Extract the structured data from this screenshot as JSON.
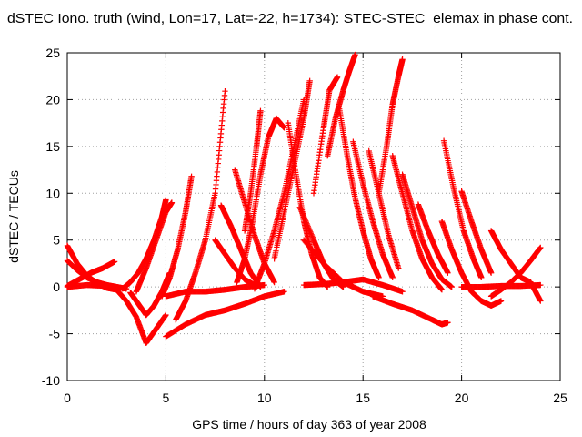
{
  "chart_data": {
    "type": "scatter",
    "title": "dSTEC Iono. truth (wind, Lon=17, Lat=-22, h=1734): STEC-STEC_elemax in phase cont.",
    "xlabel": "GPS time / hours of day 363 of year 2008",
    "ylabel": "dSTEC  / TECUs",
    "xlim": [
      0,
      25
    ],
    "ylim": [
      -10,
      25
    ],
    "x_ticks": [
      "0",
      "5",
      "10",
      "15",
      "20",
      "25"
    ],
    "y_ticks": [
      "-10",
      "-5",
      "0",
      "5",
      "10",
      "15",
      "20",
      "25"
    ],
    "grid": true,
    "marker": "+",
    "color": "#ff0000",
    "series": [
      {
        "x": [
          0.0,
          0.5,
          1.0,
          1.5,
          2.0,
          2.5
        ],
        "y": [
          4.4,
          2.5,
          1.2,
          0.4,
          -0.1,
          -0.3
        ]
      },
      {
        "x": [
          0.0,
          0.5,
          1.0,
          1.5,
          2.0,
          2.5,
          3.0
        ],
        "y": [
          2.8,
          1.8,
          1.0,
          0.5,
          0.2,
          0.0,
          -0.2
        ]
      },
      {
        "x": [
          0.0,
          1.0,
          2.0,
          2.5,
          3.0,
          3.5,
          4.0,
          4.5,
          5.0
        ],
        "y": [
          0.0,
          0.2,
          0.1,
          -0.3,
          -1.5,
          -3.2,
          -6.0,
          -4.5,
          -3.0
        ]
      },
      {
        "x": [
          0.0,
          0.6,
          1.2,
          1.8,
          2.4
        ],
        "y": [
          0.1,
          0.8,
          1.5,
          2.0,
          2.7
        ]
      },
      {
        "x": [
          2.8,
          3.2,
          3.6,
          4.0,
          4.4,
          4.8,
          5.0
        ],
        "y": [
          -0.2,
          0.5,
          1.5,
          3.0,
          5.0,
          7.5,
          9.3
        ]
      },
      {
        "x": [
          3.2,
          3.6,
          4.0,
          4.4,
          4.8,
          5.2
        ],
        "y": [
          -0.6,
          -1.8,
          -3.0,
          -2.0,
          -0.5,
          1.5
        ]
      },
      {
        "x": [
          3.5,
          4.0,
          4.5,
          5.0,
          5.3
        ],
        "y": [
          -0.5,
          2.0,
          5.0,
          8.0,
          9.0
        ]
      },
      {
        "x": [
          4.8,
          5.2,
          5.6,
          6.0,
          6.3
        ],
        "y": [
          -1.0,
          1.0,
          4.0,
          8.0,
          11.8
        ]
      },
      {
        "x": [
          5.0,
          6.0,
          7.0,
          8.0,
          9.0,
          10.0,
          11.0
        ],
        "y": [
          -5.3,
          -4.0,
          -3.0,
          -2.5,
          -1.8,
          -1.0,
          -0.5
        ]
      },
      {
        "x": [
          5.5,
          6.0,
          6.5,
          7.0,
          7.5,
          8.0
        ],
        "y": [
          -3.5,
          -1.5,
          1.5,
          5.0,
          10.0,
          20.9
        ]
      },
      {
        "x": [
          5.0,
          6.0,
          7.0,
          8.0,
          9.0,
          10.0
        ],
        "y": [
          -1.0,
          -0.5,
          -0.5,
          -0.3,
          0.0,
          0.2
        ]
      },
      {
        "x": [
          7.8,
          8.3,
          8.8,
          9.3,
          9.8
        ],
        "y": [
          8.7,
          6.5,
          4.0,
          1.5,
          0.0
        ]
      },
      {
        "x": [
          8.5,
          9.0,
          9.5,
          10.0,
          10.5
        ],
        "y": [
          12.5,
          9.0,
          5.5,
          2.5,
          0.5
        ]
      },
      {
        "x": [
          7.5,
          8.0,
          8.5,
          9.0,
          9.5
        ],
        "y": [
          5.0,
          3.5,
          2.0,
          0.8,
          0.2
        ]
      },
      {
        "x": [
          8.6,
          9.0,
          9.4,
          9.8,
          10.2,
          10.6,
          11.0
        ],
        "y": [
          0.5,
          3.0,
          7.0,
          12.0,
          16.0,
          18.0,
          17.0
        ]
      },
      {
        "x": [
          9.0,
          9.3,
          9.6,
          9.8
        ],
        "y": [
          6.0,
          10.0,
          15.0,
          18.8
        ]
      },
      {
        "x": [
          9.5,
          10.0,
          10.5,
          11.0,
          11.5,
          12.0
        ],
        "y": [
          -0.2,
          2.5,
          6.0,
          10.0,
          15.0,
          20.0
        ]
      },
      {
        "x": [
          10.5,
          11.0,
          11.5,
          12.0,
          12.3
        ],
        "y": [
          3.0,
          8.0,
          13.0,
          18.0,
          22.0
        ]
      },
      {
        "x": [
          11.2,
          11.6,
          12.0,
          12.4,
          12.8,
          13.2
        ],
        "y": [
          17.5,
          12.0,
          7.0,
          3.5,
          1.0,
          0.0
        ]
      },
      {
        "x": [
          11.8,
          12.5,
          13.0,
          13.5,
          14.0
        ],
        "y": [
          8.5,
          5.0,
          2.5,
          0.8,
          0.0
        ]
      },
      {
        "x": [
          12.5,
          13.0,
          13.3,
          13.7
        ],
        "y": [
          10.0,
          17.0,
          21.0,
          22.4
        ]
      },
      {
        "x": [
          13.2,
          13.6,
          14.0,
          14.3,
          14.6
        ],
        "y": [
          14.0,
          18.0,
          21.0,
          23.0,
          24.8
        ]
      },
      {
        "x": [
          13.8,
          14.2,
          14.6,
          15.0,
          15.4,
          15.8
        ],
        "y": [
          19.0,
          14.0,
          9.5,
          6.0,
          3.0,
          1.0
        ]
      },
      {
        "x": [
          14.5,
          15.0,
          15.5,
          16.0,
          16.5
        ],
        "y": [
          15.5,
          11.0,
          7.0,
          3.5,
          1.0
        ]
      },
      {
        "x": [
          15.3,
          15.8,
          16.3,
          16.8
        ],
        "y": [
          14.5,
          10.0,
          5.5,
          2.0
        ]
      },
      {
        "x": [
          15.8,
          16.2,
          16.5,
          16.8,
          17.0
        ],
        "y": [
          10.0,
          15.0,
          19.5,
          22.5,
          24.3
        ]
      },
      {
        "x": [
          16.5,
          17.0,
          17.5,
          18.0,
          18.5,
          19.0
        ],
        "y": [
          14.0,
          10.0,
          6.0,
          3.0,
          1.0,
          -0.3
        ]
      },
      {
        "x": [
          17.0,
          17.5,
          18.0,
          18.5,
          19.0,
          19.5
        ],
        "y": [
          12.0,
          8.5,
          5.0,
          2.5,
          0.8,
          0.0
        ]
      },
      {
        "x": [
          17.8,
          18.3,
          18.8,
          19.3
        ],
        "y": [
          8.8,
          6.0,
          3.5,
          1.5
        ]
      },
      {
        "x": [
          19.1,
          19.6,
          20.1,
          20.6,
          21.0
        ],
        "y": [
          15.6,
          10.5,
          6.0,
          3.0,
          1.0
        ]
      },
      {
        "x": [
          19.0,
          19.5,
          20.0,
          20.5,
          21.0,
          21.5,
          22.0
        ],
        "y": [
          7.0,
          4.0,
          1.5,
          -0.5,
          -1.5,
          -2.0,
          -1.5
        ]
      },
      {
        "x": [
          20.0,
          20.5,
          21.0,
          21.5
        ],
        "y": [
          10.2,
          7.0,
          4.0,
          1.5
        ]
      },
      {
        "x": [
          15.5,
          16.5,
          17.5,
          18.5,
          19.0,
          19.3
        ],
        "y": [
          -1.0,
          -1.8,
          -2.5,
          -3.5,
          -4.0,
          -3.8
        ]
      },
      {
        "x": [
          21.5,
          22.0,
          22.5,
          23.0,
          23.5,
          24.0
        ],
        "y": [
          6.0,
          4.0,
          2.5,
          1.0,
          0.5,
          -1.5
        ]
      },
      {
        "x": [
          21.5,
          22.0,
          22.5,
          23.0,
          23.5,
          24.0
        ],
        "y": [
          -1.0,
          -0.3,
          0.5,
          1.5,
          2.8,
          4.2
        ]
      },
      {
        "x": [
          20.0,
          21.0,
          22.0,
          23.0,
          24.0
        ],
        "y": [
          0.0,
          0.0,
          0.1,
          0.1,
          0.2
        ]
      },
      {
        "x": [
          12.0,
          13.0,
          14.0,
          15.0,
          16.0,
          17.0
        ],
        "y": [
          0.2,
          0.3,
          0.5,
          0.8,
          0.2,
          -0.5
        ]
      },
      {
        "x": [
          12.0,
          13.0,
          14.0,
          15.0,
          16.0
        ],
        "y": [
          5.0,
          2.5,
          0.5,
          -0.5,
          -1.0
        ]
      }
    ]
  }
}
